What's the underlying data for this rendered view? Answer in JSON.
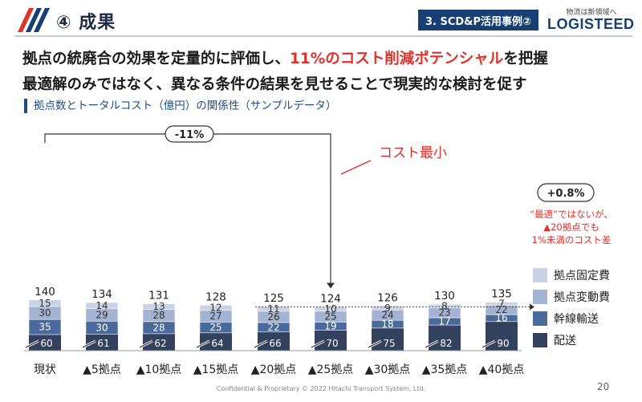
{
  "header": {
    "title": "④ 成果",
    "case_badge": "3. SCD&P活用事例②",
    "brand_tagline": "物流は新領域へ",
    "brand_name": "LOGISTEED"
  },
  "headline": {
    "line1_a": "拠点の統廃合の効果を定量的に評価し、",
    "line1_b": "11%のコスト削減ポテンシャル",
    "line1_c": "を把握",
    "line2": "最適解のみではなく、異なる条件の結果を見せることで現実的な検討を促す"
  },
  "subhead": "拠点数とトータルコスト（億円）の関係性（サンプルデータ）",
  "chart_data": {
    "type": "bar",
    "stacked": true,
    "categories": [
      "現状",
      "▲5拠点",
      "▲10拠点",
      "▲15拠点",
      "▲20拠点",
      "▲25拠点",
      "▲30拠点",
      "▲35拠点",
      "▲40拠点"
    ],
    "series": [
      {
        "name": "配送",
        "values": [
          60,
          61,
          62,
          64,
          66,
          70,
          75,
          82,
          90
        ],
        "color": "#33415f"
      },
      {
        "name": "幹線輸送",
        "values": [
          35,
          30,
          28,
          25,
          22,
          19,
          18,
          17,
          16
        ],
        "color": "#4a6a9c"
      },
      {
        "name": "拠点変動費",
        "values": [
          30,
          29,
          28,
          27,
          26,
          25,
          24,
          23,
          22
        ],
        "color": "#a3b3d1"
      },
      {
        "name": "拠点固定費",
        "values": [
          15,
          14,
          13,
          12,
          11,
          10,
          9,
          8,
          7
        ],
        "color": "#c9d3e5"
      }
    ],
    "totals": [
      140,
      134,
      131,
      128,
      125,
      124,
      126,
      130,
      135
    ],
    "annotations": {
      "reduction": "-11%",
      "min_label": "コスト最小",
      "increase": "+0.8%",
      "note_line1": "“最適”ではないが、",
      "note_line2": "▲20拠点でも",
      "note_line3": "1%未満のコスト差"
    },
    "colors": {
      "accent": "#e0312c",
      "brand": "#173f73"
    }
  },
  "footer": {
    "confidential": "Confidential & Proprietary © 2022 Hitachi Transport System, Ltd.",
    "page": "20"
  }
}
